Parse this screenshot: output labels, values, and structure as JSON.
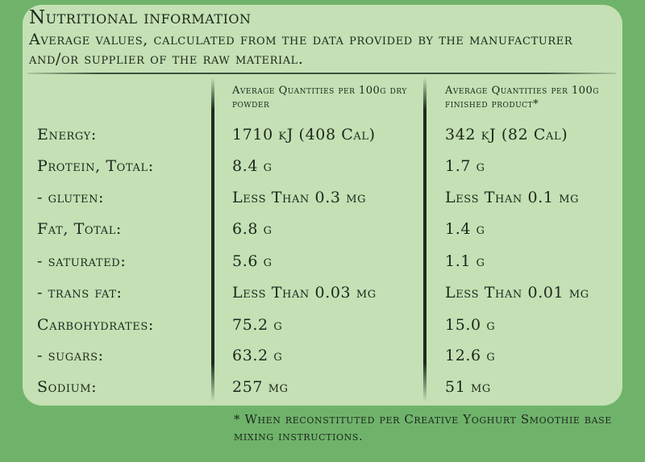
{
  "title": "Nutritional information",
  "subtitle": "Average values, calculated from the data provided by the manufacturer and/or supplier of the raw material.",
  "columns": {
    "dry_powder": "Average Quantities per 100g dry powder",
    "finished_product": "Average Quantities per 100g finished product*"
  },
  "rows": [
    {
      "label": "Energy:",
      "dry": "1710 kJ (408 Cal)",
      "finished": "342 kJ (82 Cal)"
    },
    {
      "label": "Protein, Total:",
      "dry": "8.4 g",
      "finished": "1.7 g"
    },
    {
      "label": "- gluten:",
      "dry": "Less Than 0.3 mg",
      "finished": "Less Than 0.1 mg"
    },
    {
      "label": "Fat, Total:",
      "dry": "6.8 g",
      "finished": "1.4 g"
    },
    {
      "label": "- saturated:",
      "dry": "5.6 g",
      "finished": "1.1 g"
    },
    {
      "label": "- trans fat:",
      "dry": "Less Than 0.03 mg",
      "finished": "Less Than 0.01 mg"
    },
    {
      "label": "Carbohydrates:",
      "dry": "75.2 g",
      "finished": "15.0 g"
    },
    {
      "label": "- sugars:",
      "dry": "63.2 g",
      "finished": "12.6 g"
    },
    {
      "label": "Sodium:",
      "dry": "257 mg",
      "finished": "51 mg"
    }
  ],
  "footnote": "* When reconstituted per Creative Yoghurt Smoothie base mixing instructions.",
  "colors": {
    "background": "#6fb36b",
    "panel": "#c4e0b4",
    "text": "#1c261c"
  }
}
